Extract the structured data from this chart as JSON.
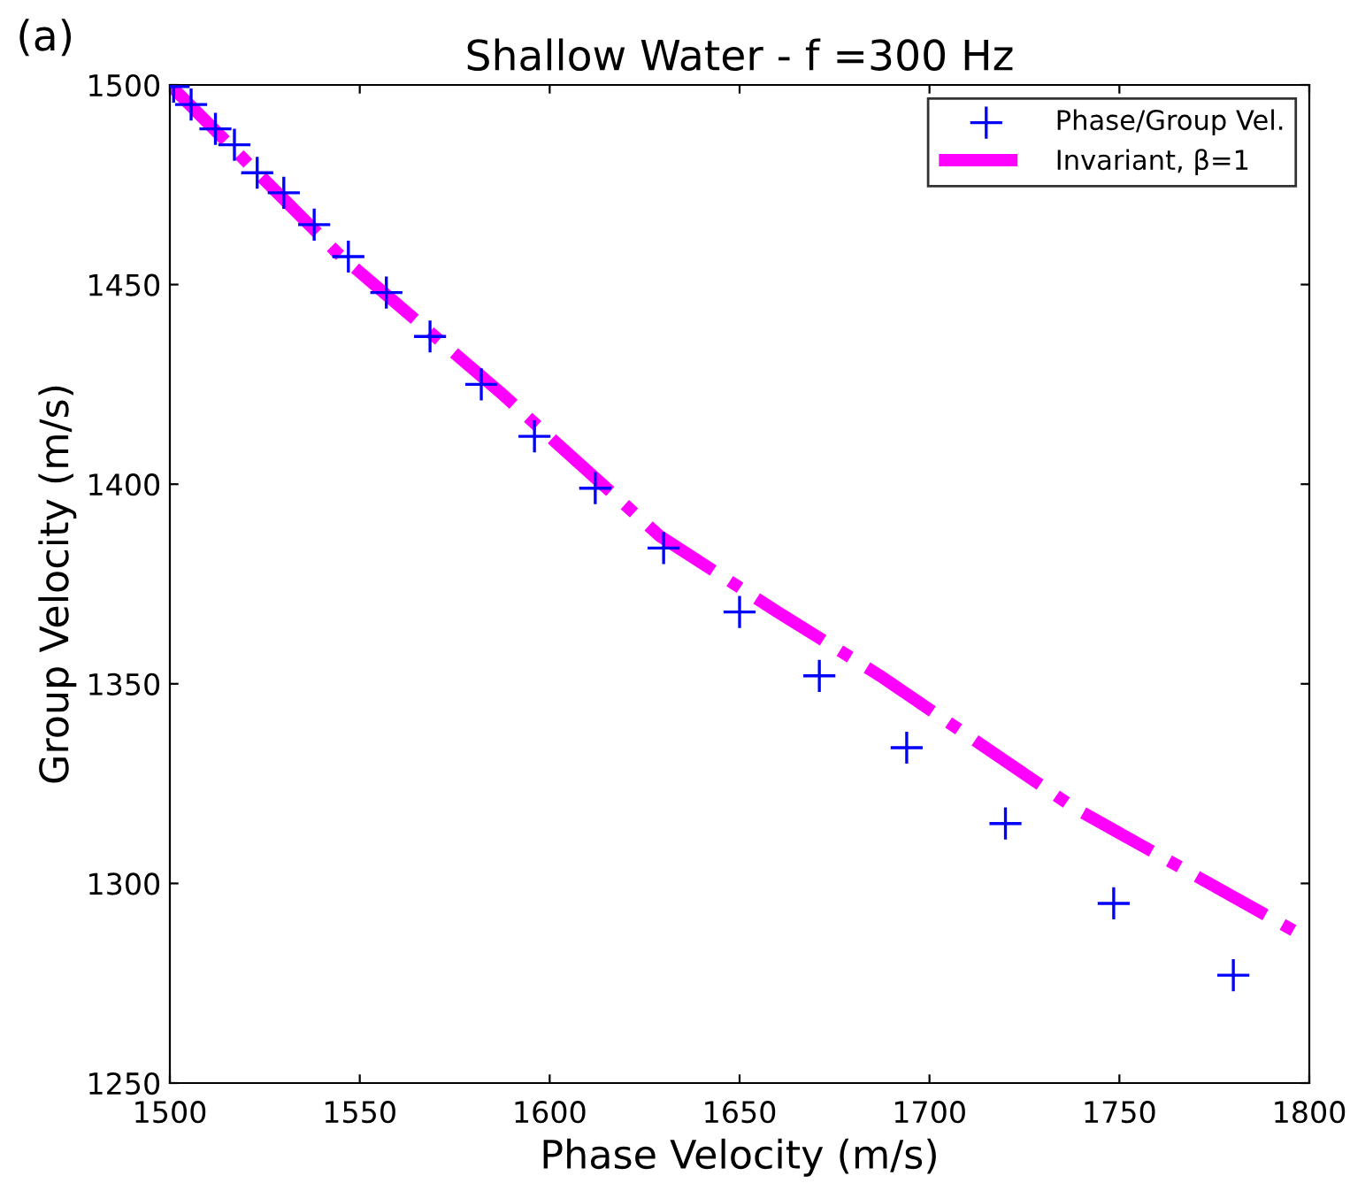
{
  "chart_data": {
    "type": "scatter",
    "title": "Shallow Water - f =300 Hz",
    "xlabel": "Phase Velocity (m/s)",
    "ylabel": "Group Velocity (m/s)",
    "annotations": [
      "(a)"
    ],
    "xlim": [
      1500,
      1800
    ],
    "xticks": [
      1500,
      1550,
      1600,
      1650,
      1700,
      1750,
      1800
    ],
    "ylim": [
      1250,
      1500
    ],
    "yticks": [
      1250,
      1300,
      1350,
      1400,
      1450,
      1500
    ],
    "grid": false,
    "legend": "top right",
    "series": [
      {
        "name": "Phase/Group Vel.",
        "color": "#0000ff",
        "marker": "cross",
        "x": [
          1501,
          1505.6,
          1512,
          1517,
          1523,
          1530,
          1538,
          1547,
          1557,
          1568.5,
          1582,
          1596,
          1612,
          1630,
          1650,
          1671,
          1694,
          1720,
          1748.5,
          1780
        ],
        "values": [
          1499.6,
          1495.1,
          1489,
          1485,
          1478,
          1473,
          1465,
          1457,
          1448,
          1437,
          1425,
          1412,
          1399,
          1384,
          1368,
          1352,
          1334,
          1315,
          1295,
          1277
        ]
      },
      {
        "name": "Invariant, β=1",
        "type": "line",
        "color": "#ff00ff",
        "line_style": "dashdot",
        "x": [
          1500,
          1544,
          1587,
          1629,
          1660,
          1687,
          1738,
          1800
        ],
        "values": [
          1500,
          1458,
          1423,
          1387,
          1368,
          1352,
          1319,
          1286
        ]
      }
    ]
  }
}
